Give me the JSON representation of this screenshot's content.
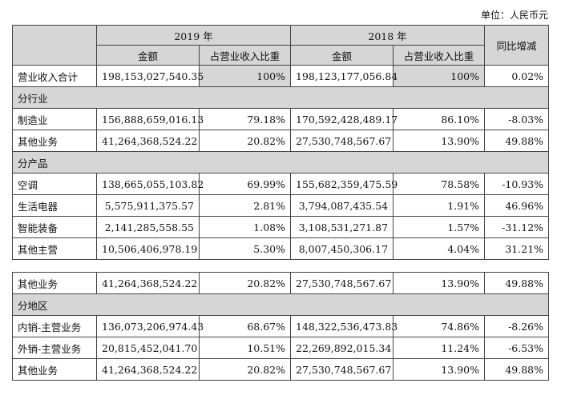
{
  "unit_label": "单位：人民币元",
  "header": {
    "year_2019": "2019 年",
    "year_2018": "2018 年",
    "yoy": "同比增减",
    "amount": "金额",
    "ratio": "占营业收入比重"
  },
  "total": {
    "label": "营业收入合计",
    "amt2019": "198,153,027,540.35",
    "pct2019": "100%",
    "amt2018": "198,123,177,056.84",
    "pct2018": "100%",
    "yoy": "0.02%"
  },
  "sections": [
    {
      "title": "分行业",
      "rows": [
        {
          "label": "制造业",
          "amt2019": "156,888,659,016.13",
          "pct2019": "79.18%",
          "amt2018": "170,592,428,489.17",
          "pct2018": "86.10%",
          "yoy": "-8.03%"
        },
        {
          "label": "其他业务",
          "amt2019": "41,264,368,524.22",
          "pct2019": "20.82%",
          "amt2018": "27,530,748,567.67",
          "pct2018": "13.90%",
          "yoy": "49.88%"
        }
      ]
    },
    {
      "title": "分产品",
      "rows": [
        {
          "label": "空调",
          "amt2019": "138,665,055,103.82",
          "pct2019": "69.99%",
          "amt2018": "155,682,359,475.59",
          "pct2018": "78.58%",
          "yoy": "-10.93%"
        },
        {
          "label": "生活电器",
          "amt2019": "5,575,911,375.57",
          "pct2019": "2.81%",
          "amt2018": "3,794,087,435.54",
          "pct2018": "1.91%",
          "yoy": "46.96%"
        },
        {
          "label": "智能装备",
          "amt2019": "2,141,285,558.55",
          "pct2019": "1.08%",
          "amt2018": "3,108,531,271.87",
          "pct2018": "1.57%",
          "yoy": "-31.12%"
        },
        {
          "label": "其他主营",
          "amt2019": "10,506,406,978.19",
          "pct2019": "5.30%",
          "amt2018": "8,007,450,306.17",
          "pct2018": "4.04%",
          "yoy": "31.21%"
        },
        {
          "label": "其他业务",
          "amt2019": "41,264,368,524.22",
          "pct2019": "20.82%",
          "amt2018": "27,530,748,567.67",
          "pct2018": "13.90%",
          "yoy": "49.88%"
        }
      ]
    },
    {
      "title": "分地区",
      "rows": [
        {
          "label": "内销-主营业务",
          "amt2019": "136,073,206,974.43",
          "pct2019": "68.67%",
          "amt2018": "148,322,536,473.83",
          "pct2018": "74.86%",
          "yoy": "-8.26%"
        },
        {
          "label": "外销-主营业务",
          "amt2019": "20,815,452,041.70",
          "pct2019": "10.51%",
          "amt2018": "22,269,892,015.34",
          "pct2018": "11.24%",
          "yoy": "-6.53%"
        },
        {
          "label": "其他业务",
          "amt2019": "41,264,368,524.22",
          "pct2019": "20.82%",
          "amt2018": "27,530,748,567.67",
          "pct2018": "13.90%",
          "yoy": "49.88%"
        }
      ]
    }
  ]
}
